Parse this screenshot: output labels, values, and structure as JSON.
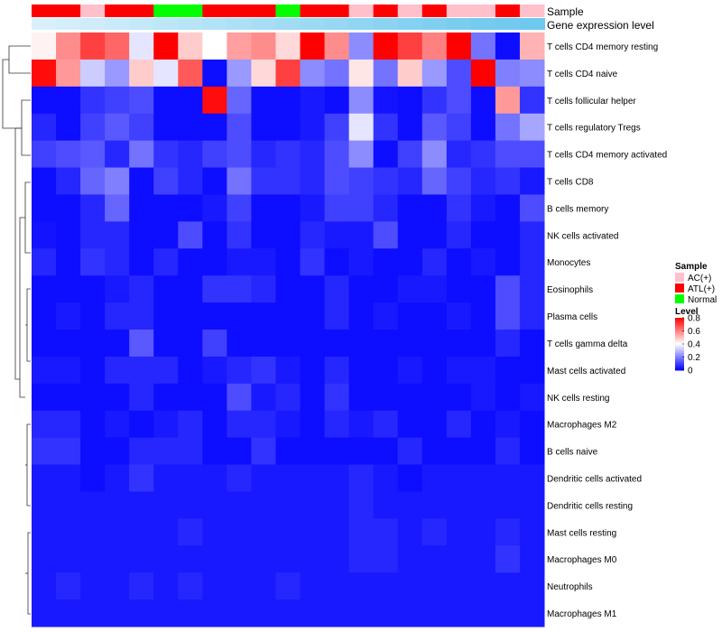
{
  "chart_data": {
    "type": "heatmap",
    "title": "",
    "annotation_track_labels": [
      "Sample",
      "Gene expression level"
    ],
    "sample_groups": [
      "ATL(+)",
      "ATL(+)",
      "AC(+)",
      "ATL(+)",
      "ATL(+)",
      "Normal",
      "Normal",
      "ATL(+)",
      "ATL(+)",
      "ATL(+)",
      "Normal",
      "ATL(+)",
      "ATL(+)",
      "AC(+)",
      "ATL(+)",
      "AC(+)",
      "ATL(+)",
      "AC(+)",
      "AC(+)",
      "ATL(+)",
      "AC(+)"
    ],
    "gene_expression_level": [
      0.05,
      0.1,
      0.15,
      0.2,
      0.25,
      0.3,
      0.35,
      0.4,
      0.45,
      0.5,
      0.55,
      0.6,
      0.65,
      0.7,
      0.75,
      0.8,
      0.85,
      0.9,
      0.95,
      0.97,
      1.0
    ],
    "rows": [
      "T cells CD4 memory resting",
      "T cells CD4 naive",
      "T cells follicular helper",
      "T cells regulatory  Tregs",
      "T cells CD4 memory activated",
      "T cells CD8",
      "B cells memory",
      "NK cells activated",
      "Monocytes",
      "Eosinophils",
      "Plasma cells",
      "T cells gamma delta",
      "Mast cells activated",
      "NK cells resting",
      "Macrophages M2",
      "B cells naive",
      "Dendritic cells activated",
      "Dendritic cells resting",
      "Mast cells resting",
      "Macrophages M0",
      "Neutrophils",
      "Macrophages M1"
    ],
    "values": [
      [
        0.42,
        0.58,
        0.7,
        0.64,
        0.36,
        0.8,
        0.48,
        0.4,
        0.55,
        0.58,
        0.46,
        0.8,
        0.58,
        0.22,
        0.8,
        0.7,
        0.6,
        0.8,
        0.18,
        0.02,
        0.52
      ],
      [
        0.78,
        0.56,
        0.32,
        0.24,
        0.48,
        0.36,
        0.66,
        0.02,
        0.24,
        0.46,
        0.7,
        0.22,
        0.18,
        0.44,
        0.18,
        0.48,
        0.24,
        0.12,
        0.8,
        0.2,
        0.22
      ],
      [
        0.02,
        0.02,
        0.08,
        0.1,
        0.12,
        0.02,
        0.02,
        0.78,
        0.16,
        0.02,
        0.02,
        0.04,
        0.02,
        0.22,
        0.03,
        0.02,
        0.08,
        0.12,
        0.02,
        0.56,
        0.08
      ],
      [
        0.06,
        0.02,
        0.1,
        0.14,
        0.1,
        0.02,
        0.02,
        0.02,
        0.12,
        0.02,
        0.02,
        0.04,
        0.1,
        0.36,
        0.08,
        0.02,
        0.14,
        0.1,
        0.02,
        0.18,
        0.26
      ],
      [
        0.1,
        0.12,
        0.14,
        0.06,
        0.18,
        0.08,
        0.06,
        0.1,
        0.12,
        0.06,
        0.08,
        0.06,
        0.12,
        0.22,
        0.02,
        0.1,
        0.22,
        0.06,
        0.08,
        0.12,
        0.12
      ],
      [
        0.02,
        0.06,
        0.16,
        0.2,
        0.02,
        0.1,
        0.06,
        0.02,
        0.18,
        0.08,
        0.08,
        0.06,
        0.12,
        0.1,
        0.08,
        0.06,
        0.16,
        0.1,
        0.06,
        0.08,
        0.04
      ],
      [
        0.02,
        0.02,
        0.06,
        0.16,
        0.02,
        0.02,
        0.02,
        0.04,
        0.1,
        0.02,
        0.02,
        0.04,
        0.1,
        0.1,
        0.06,
        0.02,
        0.02,
        0.08,
        0.04,
        0.02,
        0.12
      ],
      [
        0.03,
        0.02,
        0.06,
        0.06,
        0.02,
        0.02,
        0.12,
        0.02,
        0.08,
        0.02,
        0.02,
        0.06,
        0.04,
        0.04,
        0.12,
        0.02,
        0.02,
        0.06,
        0.02,
        0.02,
        0.06
      ],
      [
        0.06,
        0.02,
        0.08,
        0.06,
        0.02,
        0.06,
        0.02,
        0.02,
        0.04,
        0.04,
        0.02,
        0.08,
        0.02,
        0.04,
        0.02,
        0.02,
        0.06,
        0.02,
        0.04,
        0.02,
        0.06
      ],
      [
        0.02,
        0.02,
        0.02,
        0.04,
        0.06,
        0.02,
        0.02,
        0.08,
        0.08,
        0.06,
        0.02,
        0.02,
        0.06,
        0.02,
        0.02,
        0.04,
        0.04,
        0.02,
        0.02,
        0.12,
        0.06
      ],
      [
        0.02,
        0.04,
        0.02,
        0.06,
        0.06,
        0.02,
        0.02,
        0.02,
        0.02,
        0.02,
        0.02,
        0.02,
        0.06,
        0.02,
        0.04,
        0.02,
        0.02,
        0.04,
        0.02,
        0.12,
        0.06
      ],
      [
        0.02,
        0.02,
        0.02,
        0.02,
        0.14,
        0.02,
        0.02,
        0.1,
        0.02,
        0.02,
        0.02,
        0.02,
        0.02,
        0.02,
        0.02,
        0.02,
        0.02,
        0.02,
        0.02,
        0.06,
        0.02
      ],
      [
        0.04,
        0.04,
        0.02,
        0.06,
        0.06,
        0.06,
        0.02,
        0.04,
        0.06,
        0.08,
        0.04,
        0.02,
        0.06,
        0.02,
        0.02,
        0.04,
        0.02,
        0.04,
        0.04,
        0.02,
        0.02
      ],
      [
        0.02,
        0.02,
        0.02,
        0.02,
        0.06,
        0.02,
        0.02,
        0.02,
        0.12,
        0.04,
        0.06,
        0.02,
        0.08,
        0.02,
        0.02,
        0.02,
        0.02,
        0.02,
        0.04,
        0.02,
        0.04
      ],
      [
        0.06,
        0.06,
        0.02,
        0.04,
        0.02,
        0.04,
        0.06,
        0.02,
        0.06,
        0.06,
        0.04,
        0.02,
        0.06,
        0.04,
        0.06,
        0.02,
        0.02,
        0.06,
        0.02,
        0.04,
        0.02
      ],
      [
        0.08,
        0.08,
        0.02,
        0.02,
        0.06,
        0.06,
        0.06,
        0.02,
        0.02,
        0.08,
        0.02,
        0.02,
        0.02,
        0.02,
        0.02,
        0.06,
        0.02,
        0.02,
        0.02,
        0.06,
        0.02
      ],
      [
        0.04,
        0.04,
        0.02,
        0.04,
        0.08,
        0.04,
        0.04,
        0.04,
        0.06,
        0.04,
        0.04,
        0.04,
        0.04,
        0.06,
        0.04,
        0.02,
        0.04,
        0.04,
        0.04,
        0.04,
        0.04
      ],
      [
        0.04,
        0.04,
        0.04,
        0.04,
        0.04,
        0.04,
        0.04,
        0.04,
        0.04,
        0.04,
        0.04,
        0.04,
        0.04,
        0.06,
        0.04,
        0.04,
        0.04,
        0.04,
        0.04,
        0.04,
        0.04
      ],
      [
        0.04,
        0.04,
        0.04,
        0.04,
        0.04,
        0.04,
        0.06,
        0.04,
        0.04,
        0.04,
        0.04,
        0.04,
        0.04,
        0.06,
        0.06,
        0.04,
        0.06,
        0.04,
        0.04,
        0.06,
        0.04
      ],
      [
        0.04,
        0.04,
        0.04,
        0.04,
        0.04,
        0.04,
        0.04,
        0.04,
        0.04,
        0.04,
        0.04,
        0.04,
        0.04,
        0.06,
        0.06,
        0.04,
        0.04,
        0.04,
        0.04,
        0.08,
        0.04
      ],
      [
        0.04,
        0.06,
        0.04,
        0.04,
        0.06,
        0.04,
        0.06,
        0.04,
        0.04,
        0.04,
        0.06,
        0.04,
        0.04,
        0.04,
        0.04,
        0.04,
        0.04,
        0.04,
        0.04,
        0.04,
        0.04
      ],
      [
        0.04,
        0.04,
        0.04,
        0.04,
        0.04,
        0.04,
        0.04,
        0.04,
        0.04,
        0.04,
        0.04,
        0.04,
        0.04,
        0.04,
        0.04,
        0.04,
        0.04,
        0.04,
        0.04,
        0.04,
        0.04
      ]
    ],
    "scale_range": [
      0,
      0.8
    ],
    "legends": {
      "sample": {
        "title": "Sample",
        "entries": [
          {
            "label": "AC(+)",
            "color": "#ffc0cb"
          },
          {
            "label": "ATL(+)",
            "color": "#ff0000"
          },
          {
            "label": "Normal",
            "color": "#00ff00"
          }
        ]
      },
      "level": {
        "title": "Level",
        "ticks": [
          "0.8",
          "0.6",
          "0.4",
          "0.2",
          "0"
        ],
        "tick_values": [
          0.8,
          0.6,
          0.4,
          0.2,
          0
        ]
      }
    },
    "colors": {
      "low": "#0000ff",
      "mid": "#ffffff",
      "high": "#ff0000",
      "expr_low": "#dff2fb",
      "expr_high": "#6fc9ee",
      "dendrogram": "#333333"
    }
  }
}
